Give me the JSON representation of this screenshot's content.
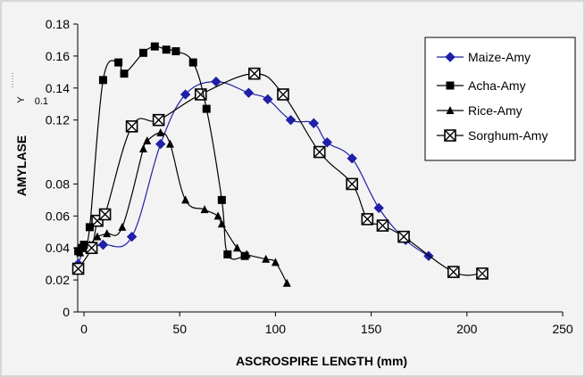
{
  "chart_data": {
    "type": "line",
    "title": "",
    "xlabel": "ASCROSPIRE LENGTH (mm)",
    "ylabel": "AMYLASE",
    "ylabel_fragment": "Y",
    "stray_tick": "0.1",
    "xlim": [
      0,
      250
    ],
    "ylim": [
      0,
      0.18
    ],
    "x_ticks": [
      "0",
      "50",
      "100",
      "150",
      "200",
      "250"
    ],
    "x_tick_values": [
      0,
      50,
      100,
      150,
      200,
      250
    ],
    "y_ticks": [
      "0",
      "0.02",
      "0.04",
      "0.06",
      "0.08",
      "0.12",
      "0.14",
      "0.16",
      "0.18"
    ],
    "y_tick_values": [
      0,
      0.02,
      0.04,
      0.06,
      0.08,
      0.12,
      0.14,
      0.16,
      0.18
    ],
    "grid": false,
    "legend_position": "right",
    "series": [
      {
        "name": "Maize-Amy",
        "color": "#1f1fa8",
        "marker": "diamond",
        "x": [
          -3,
          1,
          10,
          25,
          40,
          53,
          69,
          86,
          96,
          108,
          120,
          127,
          140,
          154,
          168,
          180
        ],
        "y": [
          0.03,
          0.04,
          0.042,
          0.047,
          0.105,
          0.136,
          0.144,
          0.137,
          0.133,
          0.12,
          0.118,
          0.106,
          0.096,
          0.065,
          0.045,
          0.035
        ]
      },
      {
        "name": "Acha-Amy",
        "color": "#000000",
        "marker": "square",
        "x": [
          -3,
          -1,
          0,
          3,
          10,
          18,
          21,
          31,
          37,
          43,
          48,
          57,
          64,
          72,
          75,
          84
        ],
        "y": [
          0.038,
          0.04,
          0.042,
          0.053,
          0.145,
          0.156,
          0.149,
          0.162,
          0.166,
          0.164,
          0.163,
          0.156,
          0.127,
          0.07,
          0.036,
          0.035
        ]
      },
      {
        "name": "Rice-Amy",
        "color": "#000000",
        "marker": "triangle",
        "x": [
          -2,
          3,
          7,
          12,
          20,
          31,
          33,
          40,
          45,
          53,
          63,
          70,
          72,
          80,
          85,
          95,
          100,
          106
        ],
        "y": [
          0.037,
          0.042,
          0.047,
          0.049,
          0.053,
          0.102,
          0.107,
          0.112,
          0.105,
          0.07,
          0.064,
          0.06,
          0.055,
          0.04,
          0.036,
          0.033,
          0.031,
          0.018
        ]
      },
      {
        "name": "Sorghum-Amy",
        "color": "#000000",
        "marker": "square-x",
        "x": [
          -3,
          4,
          7,
          11,
          25,
          39,
          61,
          89,
          104,
          123,
          140,
          148,
          156,
          167,
          193,
          208
        ],
        "y": [
          0.027,
          0.04,
          0.057,
          0.061,
          0.116,
          0.12,
          0.136,
          0.149,
          0.136,
          0.1,
          0.08,
          0.058,
          0.054,
          0.047,
          0.025,
          0.024
        ]
      }
    ]
  }
}
